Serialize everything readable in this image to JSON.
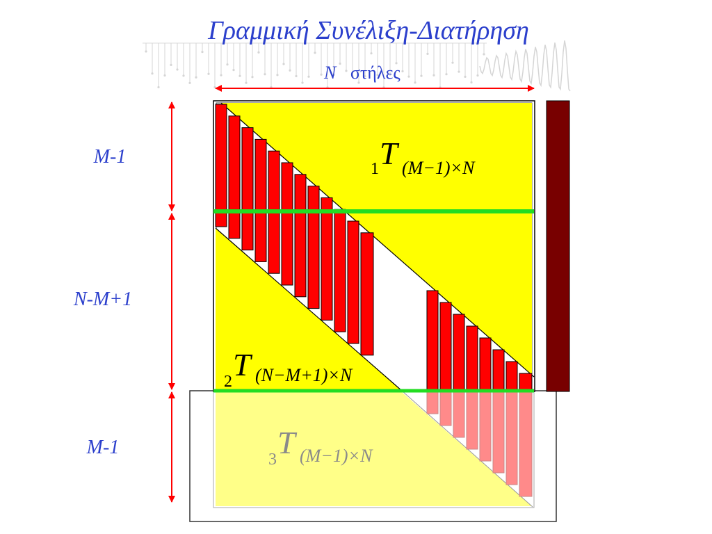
{
  "title": "Γραμμική Συνέλιξη-Διατήρηση",
  "columns_label": {
    "symbol": "N",
    "text": "στήλες"
  },
  "row_labels": [
    "M-1",
    "N-M+1",
    "M-1"
  ],
  "matrices": [
    {
      "index": "1",
      "symbol": "T",
      "dims": "(M−1)×N"
    },
    {
      "index": "2",
      "symbol": "T",
      "dims": "(N−M+1)×N"
    },
    {
      "index": "3",
      "symbol": "T",
      "dims": "(M−1)×N"
    }
  ],
  "colors": {
    "text_blue": "#2b3fcc",
    "arrow_red": "#ff0000",
    "bar_red": "#ff0000",
    "bar_pink": "#ff8a8a",
    "yellow": "#ffff00",
    "pale_yellow": "#ffff88",
    "green": "#22dd22",
    "dark_red": "#780000",
    "faded_text": "#8a8a8a"
  }
}
